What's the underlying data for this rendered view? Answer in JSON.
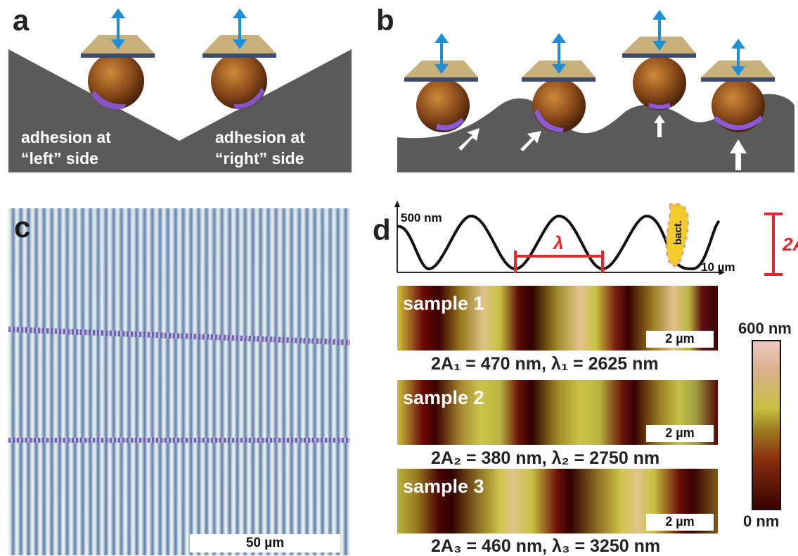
{
  "panels": {
    "a": {
      "letter": "a",
      "label_left": [
        "adhesion at",
        "“left” side"
      ],
      "label_right": [
        "adhesion at",
        "“right” side"
      ]
    },
    "b": {
      "letter": "b"
    },
    "c": {
      "letter": "c",
      "scale_bar": "50 µm"
    },
    "d": {
      "letter": "d",
      "profile_y_label": "500 nm",
      "profile_x_label": "10 µm",
      "wavelength_symbol": "λ",
      "amplitude_label": "2A",
      "bacterium_label": "bact.",
      "samples": [
        {
          "name": "sample 1",
          "scale": "2 µm",
          "caption": "2A₁ = 470 nm, λ₁ = 2625 nm"
        },
        {
          "name": "sample 2",
          "scale": "2 µm",
          "caption": "2A₂ = 380 nm, λ₂ = 2750 nm"
        },
        {
          "name": "sample 3",
          "scale": "2 µm",
          "caption": "2A₃ = 460 nm, λ₃ = 3250 nm"
        }
      ],
      "colorbar": {
        "max_label": "600 nm",
        "min_label": "0 nm"
      }
    }
  },
  "colors": {
    "surface": "#5a5a5a",
    "cantilever": "#c8b07a",
    "cantilever_edge": "#3d4a6b",
    "arrow_blue": "#1e8fd6",
    "bead": "#8a4a1a",
    "contact": "#8a5ad8",
    "highlight_red": "#e0282e"
  }
}
